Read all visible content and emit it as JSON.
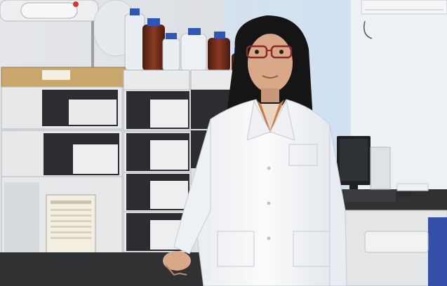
{
  "photo": {
    "subject": "",
    "colors": {
      "wall": "#dfe2e6",
      "wall_blue": "#cfe1f1",
      "bench": "#2f3133",
      "instrument": "#e6e8ea",
      "instrument_dark": "#2b2d30",
      "coat": "#f4f5f7",
      "hair": "#151515",
      "skin": "#d9a888",
      "amber_bottle": "#6b2a1a",
      "clear_bottle": "#e9eef2",
      "blue_cap": "#2d56b8",
      "floor": "#8b6f52"
    }
  }
}
